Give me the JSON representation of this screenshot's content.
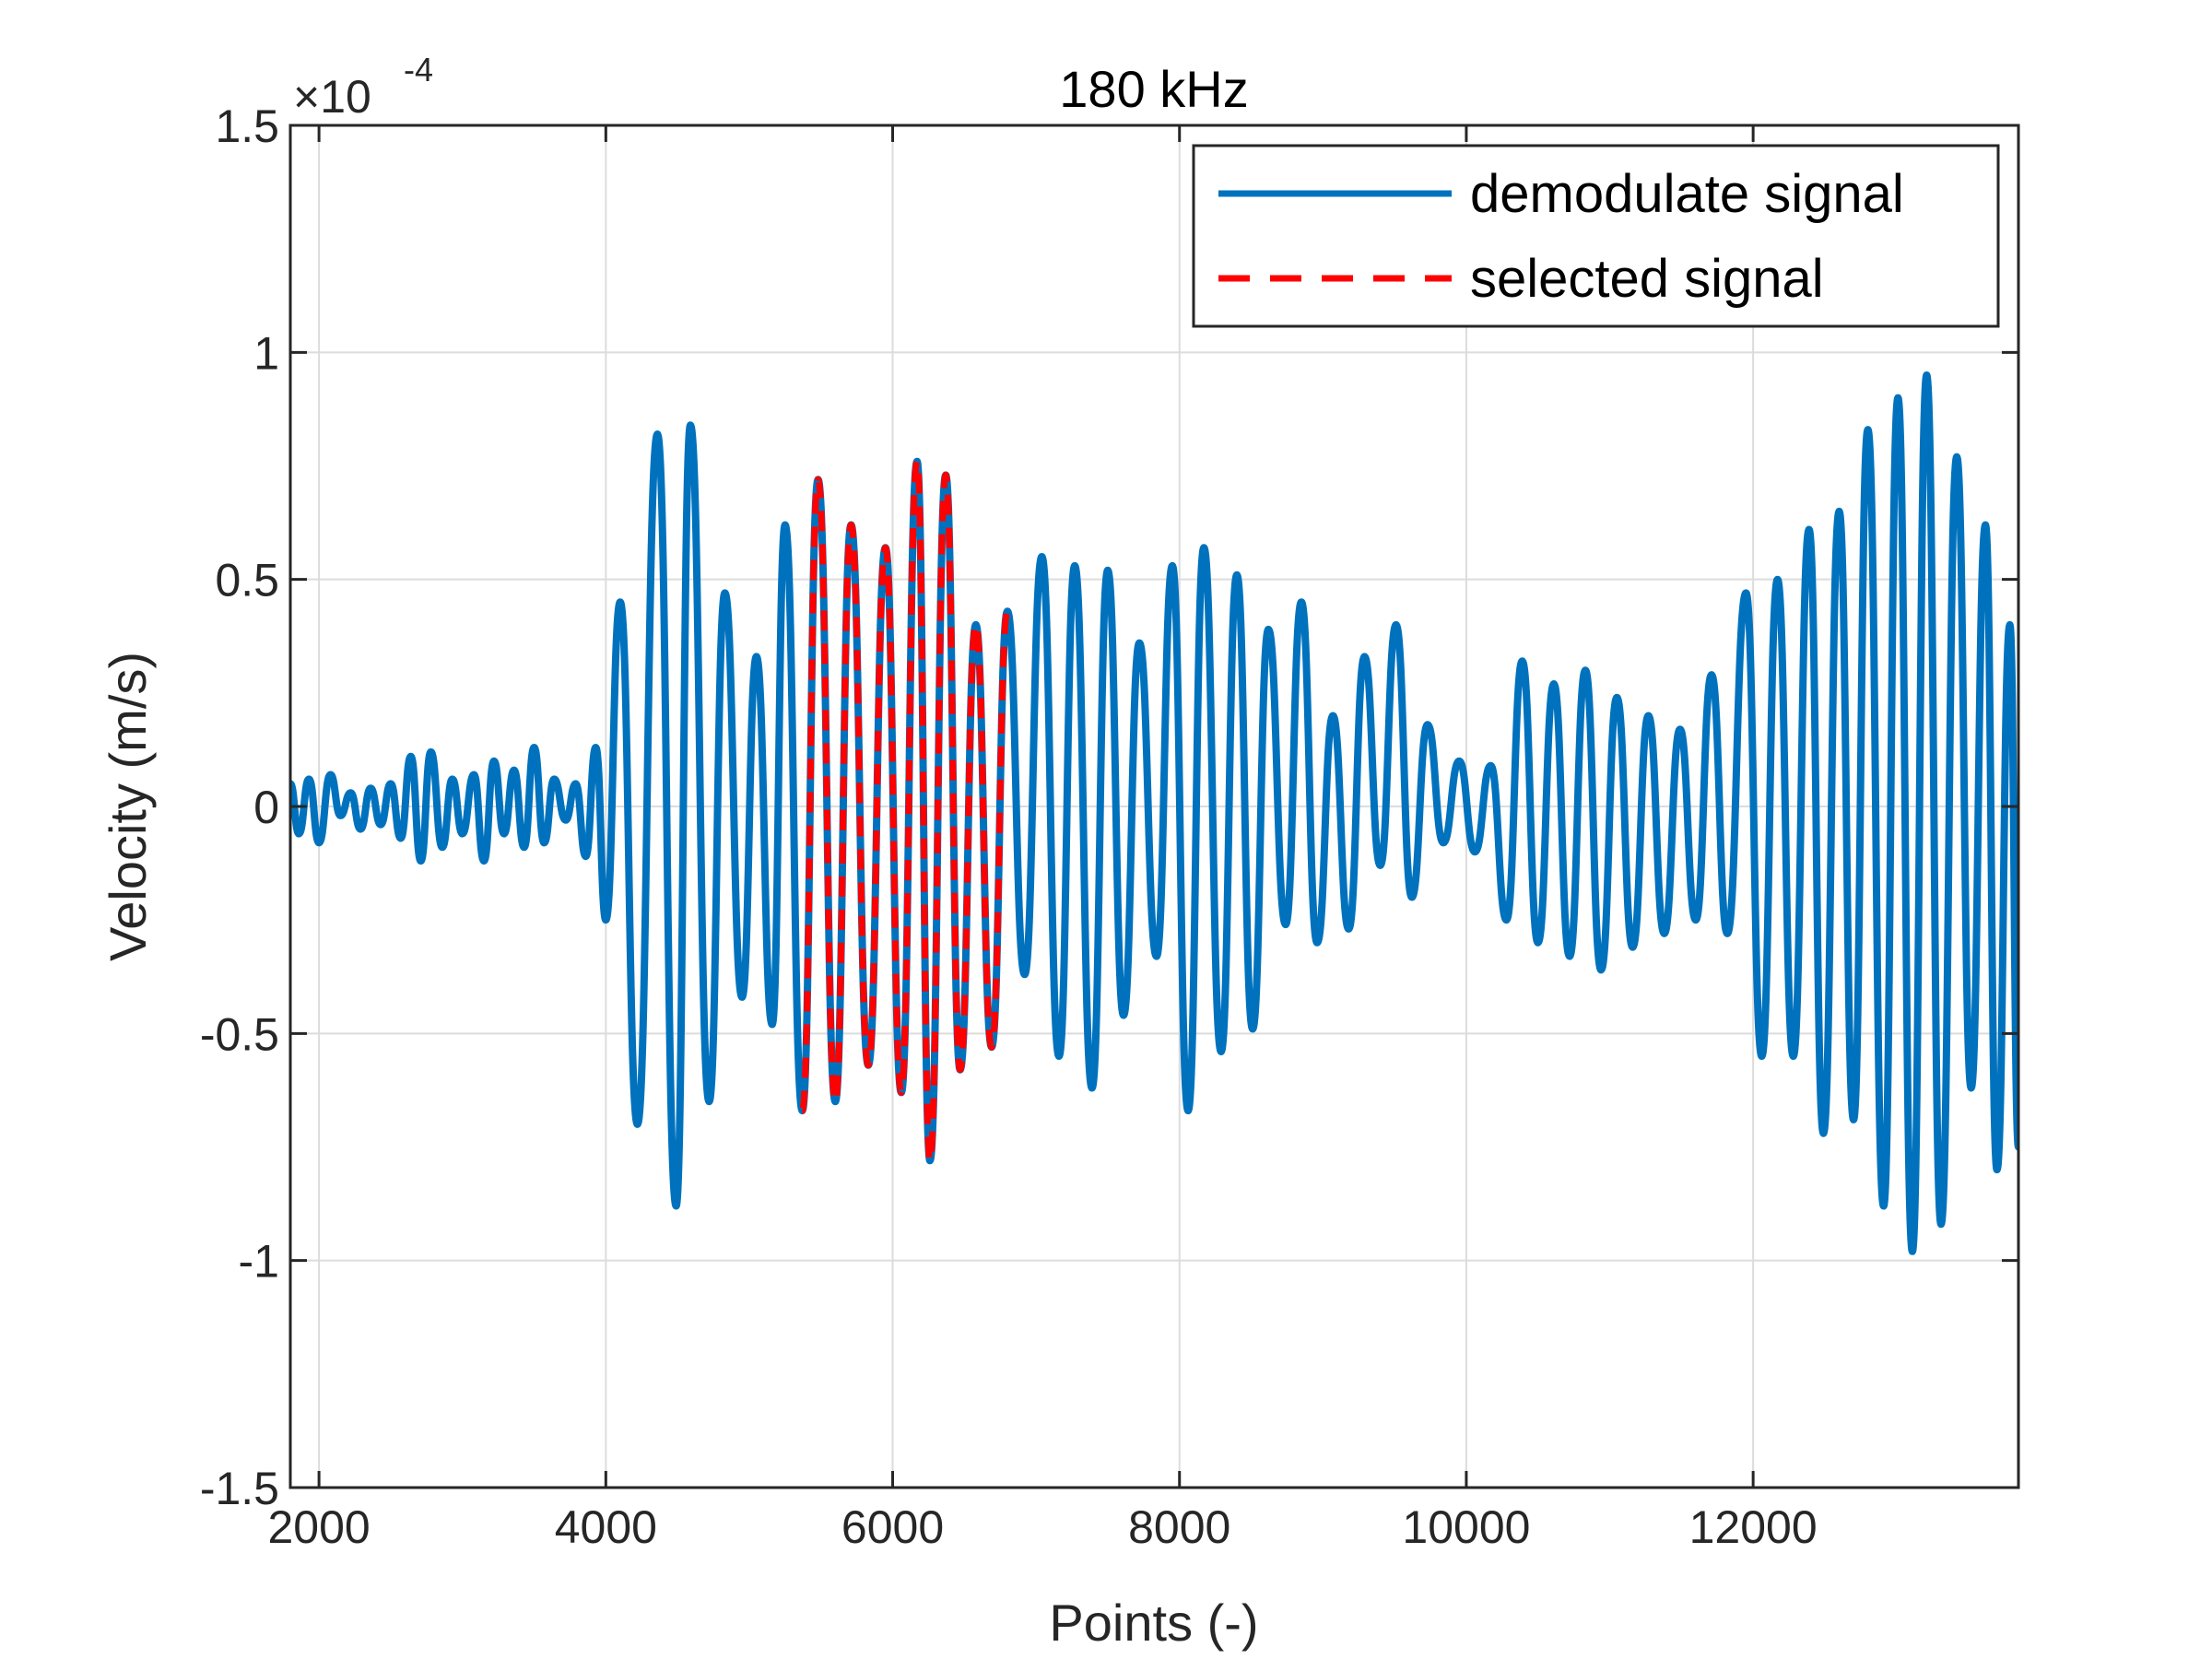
{
  "chart_data": {
    "type": "line",
    "title": "180 kHz",
    "xlabel": "Points (-)",
    "ylabel": "Velocity (m/s)",
    "y_exponent": {
      "base": "×10",
      "power": "-4"
    },
    "xlim": [
      1800,
      13850
    ],
    "ylim": [
      -1.5,
      1.5
    ],
    "x_ticks": [
      2000,
      4000,
      6000,
      8000,
      10000,
      12000
    ],
    "x_tick_labels": [
      "2000",
      "4000",
      "6000",
      "8000",
      "10000",
      "12000"
    ],
    "y_ticks": [
      -1.5,
      -1,
      -0.5,
      0,
      0.5,
      1,
      1.5
    ],
    "y_tick_labels": [
      "-1.5",
      "-1",
      "-0.5",
      "0",
      "0.5",
      "1",
      "1.5"
    ],
    "grid": true,
    "legend_position": "top-right",
    "series": [
      {
        "name": "demodulate signal",
        "color": "#0072BD",
        "style": "solid",
        "points": [
          [
            1800,
            0.05
          ],
          [
            1860,
            -0.06
          ],
          [
            1930,
            0.06
          ],
          [
            2000,
            -0.08
          ],
          [
            2080,
            0.07
          ],
          [
            2150,
            -0.02
          ],
          [
            2220,
            0.03
          ],
          [
            2290,
            -0.05
          ],
          [
            2360,
            0.04
          ],
          [
            2430,
            -0.04
          ],
          [
            2500,
            0.05
          ],
          [
            2570,
            -0.07
          ],
          [
            2640,
            0.11
          ],
          [
            2710,
            -0.12
          ],
          [
            2780,
            0.12
          ],
          [
            2860,
            -0.09
          ],
          [
            2930,
            0.06
          ],
          [
            3000,
            -0.06
          ],
          [
            3080,
            0.07
          ],
          [
            3150,
            -0.12
          ],
          [
            3220,
            0.1
          ],
          [
            3290,
            -0.06
          ],
          [
            3360,
            0.08
          ],
          [
            3430,
            -0.09
          ],
          [
            3500,
            0.13
          ],
          [
            3570,
            -0.08
          ],
          [
            3640,
            0.06
          ],
          [
            3720,
            -0.03
          ],
          [
            3790,
            0.05
          ],
          [
            3860,
            -0.11
          ],
          [
            3930,
            0.13
          ],
          [
            4000,
            -0.25
          ],
          [
            4100,
            0.45
          ],
          [
            4220,
            -0.7
          ],
          [
            4360,
            0.82
          ],
          [
            4490,
            -0.88
          ],
          [
            4590,
            0.84
          ],
          [
            4720,
            -0.65
          ],
          [
            4830,
            0.47
          ],
          [
            4950,
            -0.42
          ],
          [
            5050,
            0.33
          ],
          [
            5160,
            -0.48
          ],
          [
            5250,
            0.62
          ],
          [
            5370,
            -0.67
          ],
          [
            5480,
            0.72
          ],
          [
            5600,
            -0.65
          ],
          [
            5710,
            0.62
          ],
          [
            5830,
            -0.57
          ],
          [
            5950,
            0.57
          ],
          [
            6060,
            -0.63
          ],
          [
            6170,
            0.76
          ],
          [
            6260,
            -0.78
          ],
          [
            6370,
            0.73
          ],
          [
            6470,
            -0.58
          ],
          [
            6580,
            0.4
          ],
          [
            6690,
            -0.53
          ],
          [
            6800,
            0.43
          ],
          [
            6920,
            -0.37
          ],
          [
            7040,
            0.55
          ],
          [
            7160,
            -0.55
          ],
          [
            7270,
            0.53
          ],
          [
            7390,
            -0.62
          ],
          [
            7500,
            0.52
          ],
          [
            7610,
            -0.46
          ],
          [
            7720,
            0.36
          ],
          [
            7840,
            -0.33
          ],
          [
            7950,
            0.53
          ],
          [
            8060,
            -0.67
          ],
          [
            8170,
            0.57
          ],
          [
            8290,
            -0.54
          ],
          [
            8400,
            0.51
          ],
          [
            8510,
            -0.49
          ],
          [
            8620,
            0.39
          ],
          [
            8740,
            -0.26
          ],
          [
            8850,
            0.45
          ],
          [
            8960,
            -0.3
          ],
          [
            9070,
            0.2
          ],
          [
            9180,
            -0.27
          ],
          [
            9290,
            0.33
          ],
          [
            9400,
            -0.13
          ],
          [
            9510,
            0.4
          ],
          [
            9620,
            -0.2
          ],
          [
            9730,
            0.18
          ],
          [
            9840,
            -0.08
          ],
          [
            9950,
            0.1
          ],
          [
            10060,
            -0.1
          ],
          [
            10170,
            0.09
          ],
          [
            10280,
            -0.25
          ],
          [
            10390,
            0.32
          ],
          [
            10500,
            -0.3
          ],
          [
            10610,
            0.27
          ],
          [
            10720,
            -0.33
          ],
          [
            10830,
            0.3
          ],
          [
            10940,
            -0.36
          ],
          [
            11050,
            0.24
          ],
          [
            11160,
            -0.31
          ],
          [
            11270,
            0.2
          ],
          [
            11380,
            -0.28
          ],
          [
            11490,
            0.17
          ],
          [
            11600,
            -0.25
          ],
          [
            11710,
            0.29
          ],
          [
            11820,
            -0.28
          ],
          [
            11950,
            0.47
          ],
          [
            12060,
            -0.55
          ],
          [
            12170,
            0.5
          ],
          [
            12280,
            -0.55
          ],
          [
            12390,
            0.61
          ],
          [
            12490,
            -0.72
          ],
          [
            12600,
            0.65
          ],
          [
            12700,
            -0.69
          ],
          [
            12800,
            0.83
          ],
          [
            12910,
            -0.88
          ],
          [
            13010,
            0.9
          ],
          [
            13110,
            -0.98
          ],
          [
            13210,
            0.95
          ],
          [
            13310,
            -0.92
          ],
          [
            13420,
            0.77
          ],
          [
            13520,
            -0.62
          ],
          [
            13620,
            0.62
          ],
          [
            13700,
            -0.8
          ],
          [
            13790,
            0.4
          ],
          [
            13850,
            -0.75
          ]
        ]
      },
      {
        "name": "selected signal",
        "color": "#FF0000",
        "style": "dashed",
        "points": [
          [
            5370,
            -0.67
          ],
          [
            5480,
            0.72
          ],
          [
            5600,
            -0.65
          ],
          [
            5710,
            0.62
          ],
          [
            5830,
            -0.57
          ],
          [
            5950,
            0.57
          ],
          [
            6060,
            -0.63
          ],
          [
            6170,
            0.76
          ],
          [
            6260,
            -0.78
          ],
          [
            6370,
            0.73
          ],
          [
            6470,
            -0.58
          ],
          [
            6580,
            0.4
          ],
          [
            6690,
            -0.53
          ],
          [
            6800,
            0.43
          ]
        ]
      }
    ]
  }
}
